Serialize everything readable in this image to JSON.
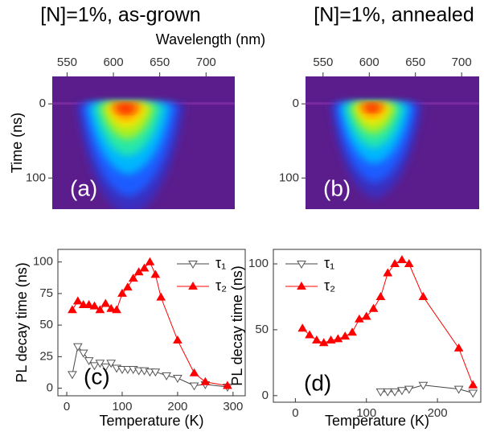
{
  "chart_data": [
    {
      "type": "image",
      "title": "[N]=1%, as-grown",
      "x_label": "Wavelength (nm)",
      "y_label": "Time (ns)",
      "panel_label": "(a)",
      "xlim": [
        534,
        731
      ],
      "xticks": [
        550,
        600,
        650,
        700
      ],
      "ylim": [
        -37,
        142
      ],
      "yticks": [
        0,
        100
      ],
      "y_inverted": true
    },
    {
      "type": "image",
      "title": "[N]=1%, annealed",
      "panel_label": "(b)",
      "xlim": [
        531,
        719
      ],
      "xticks": [
        550,
        600,
        650,
        700
      ],
      "ylim": [
        -37,
        142
      ],
      "yticks": [
        0,
        100
      ],
      "y_inverted": true
    },
    {
      "type": "line",
      "x_label": "Temperature (K)",
      "y_label": "PL decay time (ns)",
      "panel_label": "(c)",
      "xlim": [
        -16,
        322
      ],
      "xticks": [
        0,
        100,
        200,
        300
      ],
      "ylim": [
        -6,
        110
      ],
      "yticks": [
        0,
        25,
        50,
        75,
        100
      ],
      "legend": "upper right",
      "series": [
        {
          "name": "τ₁",
          "color": "#000000",
          "marker": "triangle-down-open",
          "x": [
            10,
            20,
            30,
            40,
            50,
            60,
            70,
            80,
            90,
            100,
            110,
            120,
            130,
            140,
            150,
            160,
            180,
            200,
            230,
            250,
            290
          ],
          "values": [
            11,
            33,
            28,
            22,
            18,
            20,
            17,
            20,
            16,
            15,
            15,
            15,
            14,
            14,
            13,
            13,
            10,
            8,
            2,
            3,
            1
          ]
        },
        {
          "name": "τ₂",
          "color": "#ff0000",
          "marker": "triangle-up-filled",
          "x": [
            10,
            20,
            30,
            40,
            50,
            60,
            70,
            80,
            90,
            100,
            110,
            120,
            130,
            140,
            150,
            160,
            170,
            200,
            230,
            250,
            290
          ],
          "values": [
            62,
            69,
            66,
            66,
            65,
            62,
            67,
            63,
            62,
            75,
            80,
            87,
            92,
            95,
            100,
            90,
            72,
            38,
            12,
            5,
            2
          ]
        }
      ]
    },
    {
      "type": "line",
      "x_label": "Temperature (K)",
      "y_label": "PL decay time (ns)",
      "panel_label": "(d)",
      "xlim": [
        -31,
        261
      ],
      "xticks": [
        0,
        100,
        200
      ],
      "ylim": [
        -5,
        111
      ],
      "yticks": [
        0,
        50,
        100
      ],
      "legend": "upper left",
      "series": [
        {
          "name": "τ₁",
          "color": "#000000",
          "marker": "triangle-down-open",
          "x": [
            120,
            130,
            140,
            150,
            160,
            180,
            230,
            250
          ],
          "values": [
            3,
            3,
            3,
            4,
            5,
            8,
            5,
            2
          ]
        },
        {
          "name": "τ₂",
          "color": "#ff0000",
          "marker": "triangle-up-filled",
          "x": [
            10,
            20,
            30,
            40,
            50,
            60,
            70,
            80,
            90,
            100,
            110,
            120,
            130,
            140,
            150,
            160,
            180,
            230,
            250
          ],
          "values": [
            51,
            46,
            42,
            40,
            42,
            43,
            45,
            48,
            58,
            60,
            66,
            75,
            93,
            100,
            103,
            100,
            75,
            36,
            8
          ]
        }
      ]
    }
  ]
}
